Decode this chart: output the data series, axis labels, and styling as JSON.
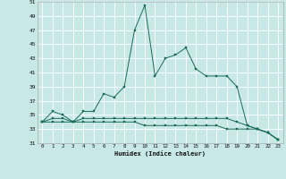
{
  "xlabel": "Humidex (Indice chaleur)",
  "x": [
    0,
    1,
    2,
    3,
    4,
    5,
    6,
    7,
    8,
    9,
    10,
    11,
    12,
    13,
    14,
    15,
    16,
    17,
    18,
    19,
    20,
    21,
    22,
    23
  ],
  "line1": [
    34,
    35.5,
    35,
    34,
    35.5,
    35.5,
    38,
    37.5,
    39,
    47,
    50.5,
    40.5,
    43,
    43.5,
    44.5,
    41.5,
    40.5,
    40.5,
    40.5,
    39,
    33.5,
    33,
    32.5,
    31.5
  ],
  "line2": [
    34,
    34.5,
    34.5,
    34,
    34.5,
    34.5,
    34.5,
    34.5,
    34.5,
    34.5,
    34.5,
    34.5,
    34.5,
    34.5,
    34.5,
    34.5,
    34.5,
    34.5,
    34.5,
    34,
    33.5,
    33,
    32.5,
    31.5
  ],
  "line3": [
    34,
    34,
    34,
    34,
    34,
    34,
    34,
    34,
    34,
    34,
    33.5,
    33.5,
    33.5,
    33.5,
    33.5,
    33.5,
    33.5,
    33.5,
    33,
    33,
    33,
    33,
    32.5,
    31.5
  ],
  "line_color": "#1a6b5a",
  "bg_color": "#c8e8e8",
  "grid_color": "#ffffff",
  "ylim": [
    31,
    51
  ],
  "yticks": [
    31,
    33,
    35,
    37,
    39,
    41,
    43,
    45,
    47,
    49,
    51
  ],
  "xlim": [
    -0.5,
    23.5
  ]
}
